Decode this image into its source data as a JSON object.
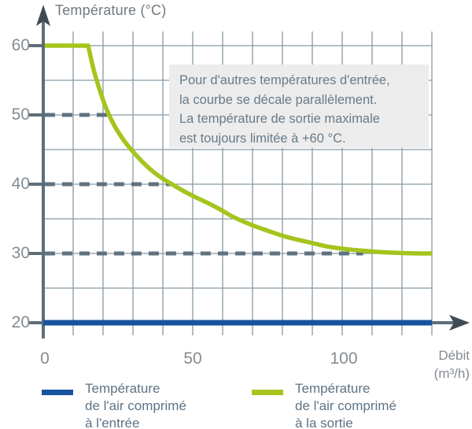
{
  "title": "Température (°C)",
  "y_axis": {
    "ticks": [
      "60",
      "50",
      "40",
      "30",
      "20"
    ]
  },
  "x_axis": {
    "ticks": [
      "0",
      "50",
      "100"
    ],
    "label_line1": "Débit",
    "label_line2": "(m³/h)"
  },
  "annotation": {
    "lines": [
      "Pour d'autres températures d'entrée,",
      "la courbe se décale parallèlement.",
      "La température de sortie maximale",
      "est toujours limitée à +60 °C."
    ]
  },
  "legend": {
    "entree": {
      "lines": [
        "Température",
        "de l'air comprimé",
        "à l'entrée"
      ],
      "color": "#17539e"
    },
    "sortie": {
      "lines": [
        "Température",
        "de l'air comprimé",
        "à la sortie"
      ],
      "color": "#a5c41d"
    }
  },
  "colors": {
    "axis": "#5d6e79",
    "arrow": "#3f4c56",
    "grid": "#8799a5",
    "dash": "#5f7280",
    "entree_line": "#17539e",
    "sortie_line": "#a5c41d",
    "note_bg": "#ececec"
  },
  "chart_data": {
    "type": "line",
    "title": "Température (°C)",
    "xlabel": "Débit (m³/h)",
    "ylabel": "Température (°C)",
    "axes": {
      "x": {
        "min": 0,
        "max": 130,
        "ticks": [
          0,
          50,
          100
        ],
        "gridline_step": 10
      },
      "y": {
        "min": 20,
        "max": 60,
        "ticks": [
          20,
          30,
          40,
          50,
          60
        ],
        "gridline_step": 5
      }
    },
    "grid": "on",
    "legend_position": "bottom",
    "series": [
      {
        "name": "Température de l'air comprimé à l'entrée",
        "color": "#17539e",
        "width": 7,
        "points": [
          [
            0,
            20
          ],
          [
            130,
            20
          ]
        ]
      },
      {
        "name": "Température de l'air comprimé à la sortie",
        "color": "#a5c41d",
        "width": 5.5,
        "corner_index": 1,
        "points": [
          [
            0.5,
            60
          ],
          [
            15,
            60
          ],
          [
            17,
            56.3
          ],
          [
            19.5,
            52.8
          ],
          [
            21.5,
            50.5
          ],
          [
            24,
            48.3
          ],
          [
            27,
            46.3
          ],
          [
            30,
            44.7
          ],
          [
            33,
            43.3
          ],
          [
            36.5,
            41.9
          ],
          [
            40,
            40.8
          ],
          [
            43,
            40
          ],
          [
            47,
            39
          ],
          [
            51,
            38.1
          ],
          [
            55,
            37.3
          ],
          [
            59,
            36.4
          ],
          [
            63,
            35.4
          ],
          [
            67,
            34.6
          ],
          [
            71,
            33.9
          ],
          [
            75,
            33.3
          ],
          [
            79,
            32.7
          ],
          [
            83,
            32.2
          ],
          [
            87,
            31.8
          ],
          [
            91,
            31.4
          ],
          [
            95,
            31
          ],
          [
            99,
            30.75
          ],
          [
            103,
            30.55
          ],
          [
            107,
            30.4
          ],
          [
            111,
            30.25
          ],
          [
            115,
            30.15
          ],
          [
            119,
            30.08
          ],
          [
            123,
            30.03
          ],
          [
            130,
            30
          ]
        ]
      }
    ],
    "dashed_guides": [
      {
        "y": 50,
        "x_start": 0.5,
        "x_end": 21.5
      },
      {
        "y": 40,
        "x_start": 0.5,
        "x_end": 42.5
      },
      {
        "y": 30,
        "x_start": 0.5,
        "x_end": 107
      }
    ],
    "annotation": "Pour d'autres températures d'entrée, la courbe se décale parallèlement. La température de sortie maximale est toujours limitée à +60 °C."
  }
}
